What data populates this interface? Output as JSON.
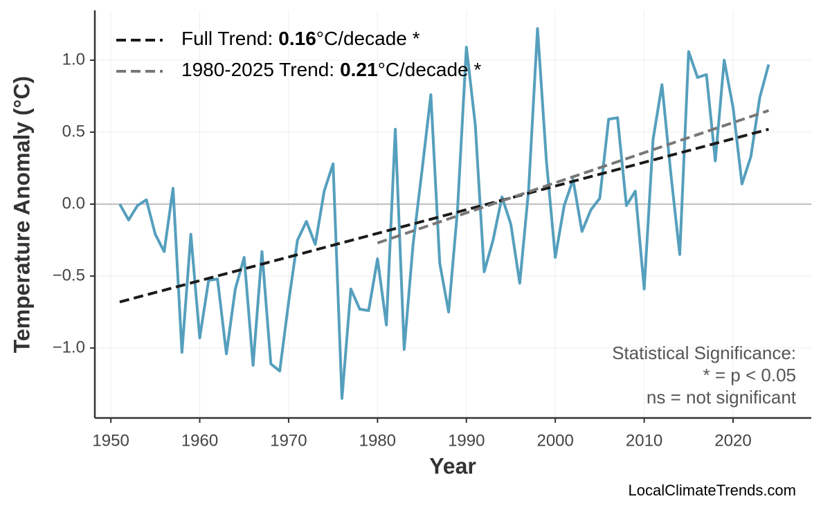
{
  "chart_data": {
    "type": "line",
    "xlabel": "Year",
    "ylabel": "Temperature Anomaly (°C)",
    "x": [
      1951,
      1952,
      1953,
      1954,
      1955,
      1956,
      1957,
      1958,
      1959,
      1960,
      1961,
      1962,
      1963,
      1964,
      1965,
      1966,
      1967,
      1968,
      1969,
      1970,
      1971,
      1972,
      1973,
      1974,
      1975,
      1976,
      1977,
      1978,
      1979,
      1980,
      1981,
      1982,
      1983,
      1984,
      1985,
      1986,
      1987,
      1988,
      1989,
      1990,
      1991,
      1992,
      1993,
      1994,
      1995,
      1996,
      1997,
      1998,
      1999,
      2000,
      2001,
      2002,
      2003,
      2004,
      2005,
      2006,
      2007,
      2008,
      2009,
      2010,
      2011,
      2012,
      2013,
      2014,
      2015,
      2016,
      2017,
      2018,
      2019,
      2020,
      2021,
      2022,
      2023,
      2024
    ],
    "values": [
      0.0,
      -0.11,
      -0.01,
      0.03,
      -0.21,
      -0.33,
      0.11,
      -1.03,
      -0.21,
      -0.93,
      -0.53,
      -0.52,
      -1.04,
      -0.59,
      -0.37,
      -1.12,
      -0.33,
      -1.11,
      -1.16,
      -0.68,
      -0.25,
      -0.12,
      -0.28,
      0.09,
      0.28,
      -1.35,
      -0.59,
      -0.73,
      -0.74,
      -0.38,
      -0.84,
      0.52,
      -1.01,
      -0.28,
      0.23,
      0.76,
      -0.41,
      -0.75,
      -0.04,
      1.09,
      0.55,
      -0.47,
      -0.25,
      0.05,
      -0.14,
      -0.55,
      0.1,
      1.22,
      0.3,
      -0.37,
      -0.01,
      0.17,
      -0.19,
      -0.04,
      0.04,
      0.59,
      0.6,
      -0.01,
      0.09,
      -0.59,
      0.45,
      0.83,
      0.21,
      -0.35,
      1.06,
      0.88,
      0.9,
      0.3,
      1.0,
      0.67,
      0.14,
      0.33,
      0.74,
      0.97
    ],
    "color": "#559fbd",
    "trends": [
      {
        "name": "Full Trend:",
        "slope": 0.16,
        "slope_unit": "°C/decade *",
        "color": "#1a1a1a",
        "x": [
          1951,
          2024
        ],
        "values": [
          -0.68,
          0.52
        ]
      },
      {
        "name": "1980-2025 Trend:",
        "slope": 0.21,
        "slope_unit": "°C/decade *",
        "color": "#777777",
        "x": [
          1980,
          2024
        ],
        "values": [
          -0.27,
          0.65
        ]
      }
    ],
    "xlim": [
      1948.2,
      2028.8
    ],
    "ylim": [
      -1.486,
      1.346
    ],
    "xticks": [
      1950,
      1960,
      1970,
      1980,
      1990,
      2000,
      2010,
      2020
    ],
    "yticks": [
      {
        "value": -1.0,
        "label": "−1.0"
      },
      {
        "value": -0.5,
        "label": "−0.5"
      },
      {
        "value": 0.0,
        "label": "0.0"
      },
      0.5,
      {
        "value": 1.0,
        "label": "1.0"
      }
    ],
    "reference_line": 0,
    "grid": true,
    "legend": "upper left",
    "annotation": [
      "Statistical Significance:",
      "* = p < 0.05",
      "ns = not significant"
    ],
    "watermark": "LocalClimateTrends.com"
  }
}
